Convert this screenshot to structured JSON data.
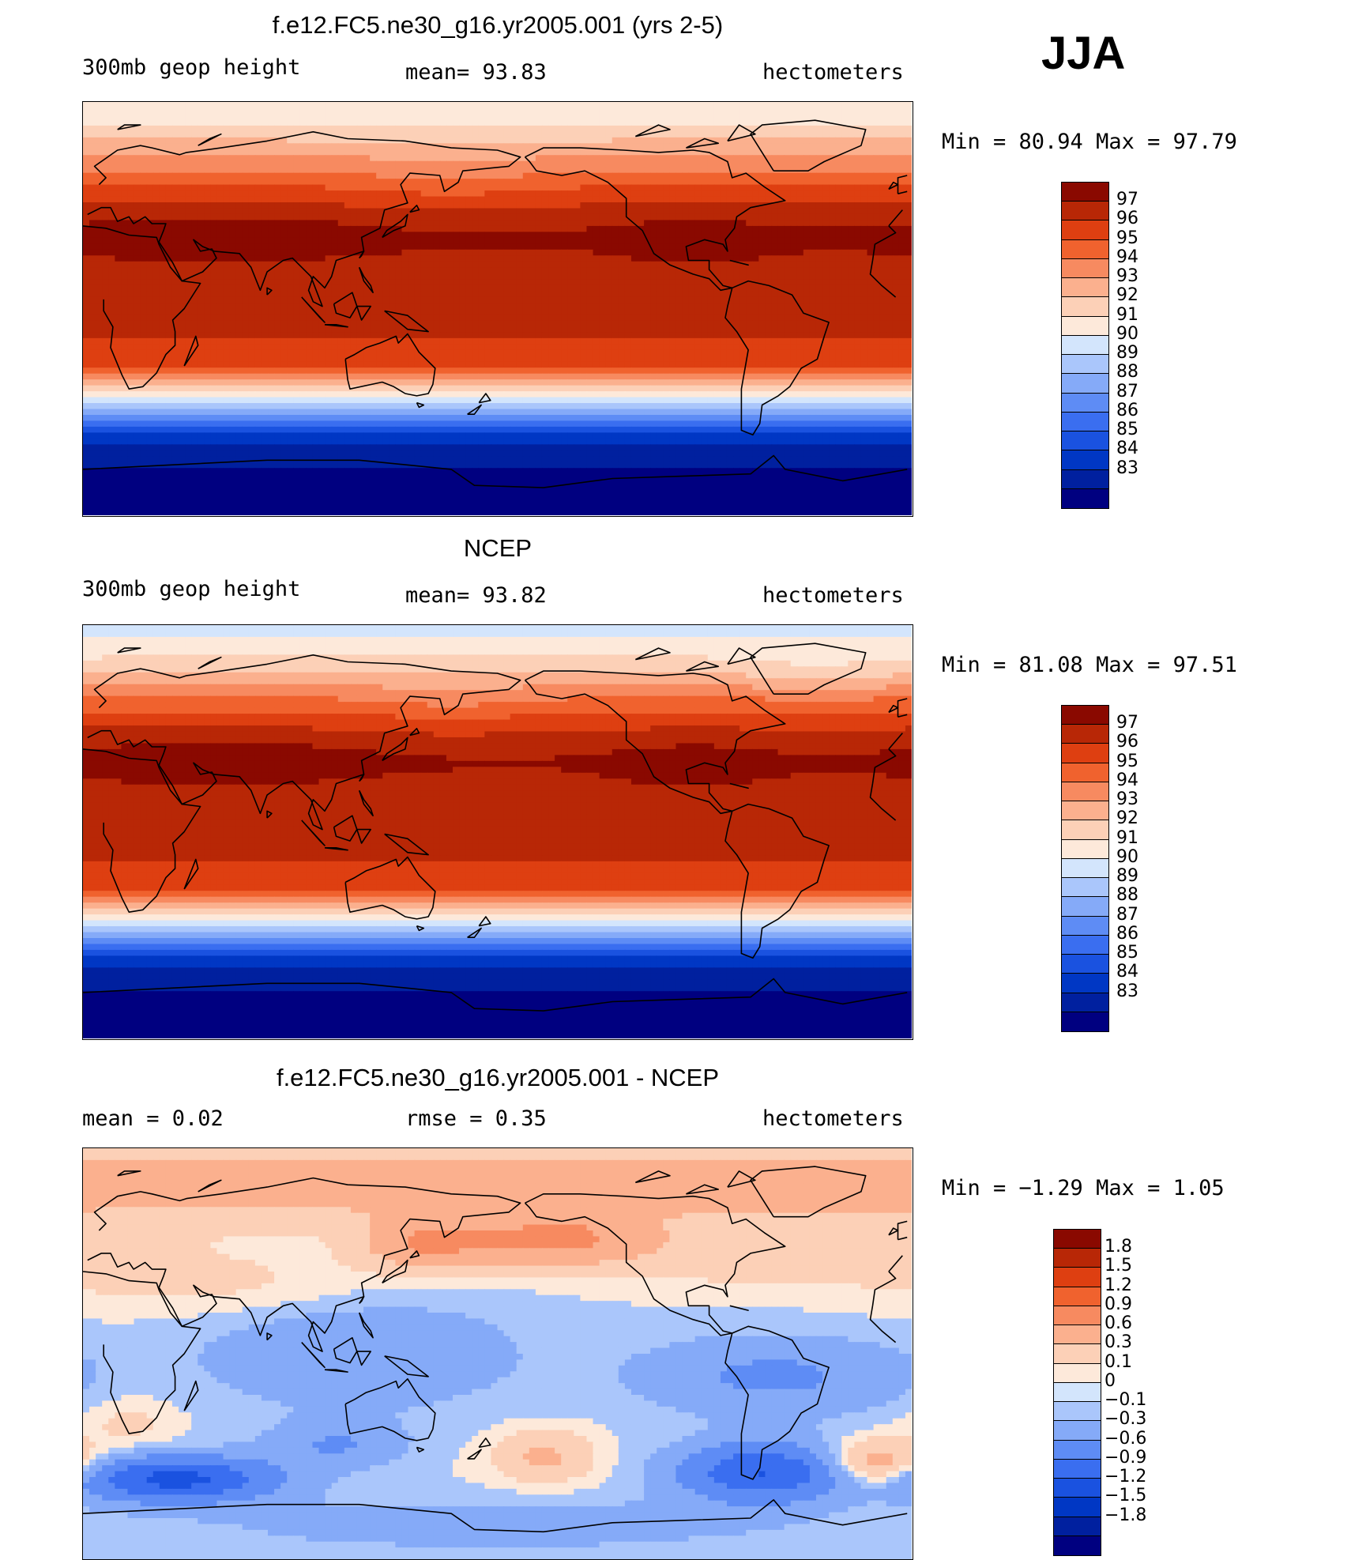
{
  "season": "JJA",
  "colors": {
    "main": [
      "#000080",
      "#00209f",
      "#0037c4",
      "#1a52e0",
      "#3a6ef0",
      "#5e8cf5",
      "#85aaf8",
      "#aac6fb",
      "#d3e5fc",
      "#fde9da",
      "#fcd0b7",
      "#fbb08e",
      "#f78a60",
      "#f0622e",
      "#de3f11",
      "#b82706",
      "#8a0900"
    ],
    "diff": [
      "#000080",
      "#00209f",
      "#0037c4",
      "#1a52e0",
      "#3a6ef0",
      "#5e8cf5",
      "#85aaf8",
      "#aac6fb",
      "#d3e5fc",
      "#fde9da",
      "#fcd0b7",
      "#fbb08e",
      "#f78a60",
      "#f0622e",
      "#de3f11",
      "#b82706",
      "#8a0900"
    ]
  },
  "panels": [
    {
      "title": "f.e12.FC5.ne30_g16.yr2005.001 (yrs 2-5)",
      "left_label": "300mb geop height",
      "center_label": "mean=  93.83",
      "right_label": "hectometers",
      "minmax": "Min =  80.94 Max =  97.79"
    },
    {
      "title": "NCEP",
      "left_label": "300mb geop height",
      "center_label": "mean=  93.82",
      "right_label": "hectometers",
      "minmax": "Min =  81.08 Max =  97.51"
    },
    {
      "title": "f.e12.FC5.ne30_g16.yr2005.001 - NCEP",
      "left_label": "mean =   0.02",
      "center_label": "rmse =   0.35",
      "right_label": "hectometers",
      "minmax": "Min =  −1.29 Max =   1.05"
    }
  ],
  "chart_data": [
    {
      "type": "heatmap",
      "title": "f.e12.FC5.ne30_g16.yr2005.001 (yrs 2-5)",
      "variable": "300mb geop height",
      "units": "hectometers",
      "mean": 93.83,
      "min": 80.94,
      "max": 97.79,
      "colorbar_levels": [
        "97",
        "96",
        "95",
        "94",
        "93",
        "92",
        "91",
        "90",
        "89",
        "88",
        "87",
        "86",
        "85",
        "84",
        "83"
      ],
      "zonal_profile": [
        [
          90,
          90.5
        ],
        [
          80,
          91
        ],
        [
          70,
          92.5
        ],
        [
          60,
          94
        ],
        [
          50,
          95.5
        ],
        [
          40,
          96.6
        ],
        [
          30,
          97.2
        ],
        [
          20,
          96.6
        ],
        [
          10,
          96.2
        ],
        [
          0,
          96.2
        ],
        [
          -10,
          96.1
        ],
        [
          -20,
          95.8
        ],
        [
          -25,
          95
        ],
        [
          -30,
          93
        ],
        [
          -35,
          91
        ],
        [
          -40,
          89.5
        ],
        [
          -45,
          87.5
        ],
        [
          -50,
          85.5
        ],
        [
          -55,
          84
        ],
        [
          -60,
          83
        ],
        [
          -70,
          82
        ],
        [
          -80,
          81.5
        ],
        [
          -90,
          81
        ]
      ]
    },
    {
      "type": "heatmap",
      "title": "NCEP",
      "variable": "300mb geop height",
      "units": "hectometers",
      "mean": 93.82,
      "min": 81.08,
      "max": 97.51,
      "colorbar_levels": [
        "97",
        "96",
        "95",
        "94",
        "93",
        "92",
        "91",
        "90",
        "89",
        "88",
        "87",
        "86",
        "85",
        "84",
        "83"
      ],
      "zonal_profile": [
        [
          90,
          89.5
        ],
        [
          80,
          90.5
        ],
        [
          70,
          92
        ],
        [
          60,
          93.8
        ],
        [
          50,
          95.4
        ],
        [
          40,
          96.5
        ],
        [
          30,
          97.1
        ],
        [
          20,
          96.6
        ],
        [
          10,
          96.2
        ],
        [
          0,
          96.2
        ],
        [
          -10,
          96.1
        ],
        [
          -20,
          95.8
        ],
        [
          -25,
          95
        ],
        [
          -30,
          93
        ],
        [
          -35,
          91
        ],
        [
          -40,
          89.5
        ],
        [
          -45,
          87.5
        ],
        [
          -50,
          85.5
        ],
        [
          -55,
          84
        ],
        [
          -60,
          83
        ],
        [
          -70,
          82
        ],
        [
          -80,
          81.5
        ],
        [
          -90,
          81.2
        ]
      ]
    },
    {
      "type": "heatmap",
      "title": "f.e12.FC5.ne30_g16.yr2005.001 - NCEP",
      "units": "hectometers",
      "mean": 0.02,
      "rmse": 0.35,
      "min": -1.29,
      "max": 1.05,
      "colorbar_levels": [
        "1.8",
        "1.5",
        "1.2",
        "0.9",
        "0.6",
        "0.3",
        "0.1",
        "0",
        "−0.1",
        "−0.3",
        "−0.6",
        "−0.9",
        "−1.2",
        "−1.5",
        "−1.8"
      ]
    }
  ]
}
